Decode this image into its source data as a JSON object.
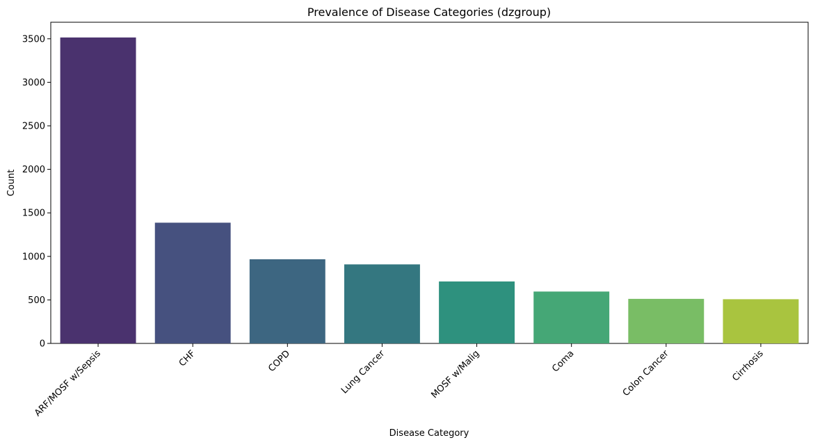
{
  "chart_data": {
    "type": "bar",
    "title": "Prevalence of Disease Categories (dzgroup)",
    "xlabel": "Disease Category",
    "ylabel": "Count",
    "categories": [
      "ARF/MOSF w/Sepsis",
      "CHF",
      "COPD",
      "Lung Cancer",
      "MOSF w/Malig",
      "Coma",
      "Colon Cancer",
      "Cirrhosis"
    ],
    "values": [
      3515,
      1387,
      967,
      908,
      712,
      596,
      512,
      508
    ],
    "colors": [
      "#4a326e",
      "#46517f",
      "#3d6681",
      "#347780",
      "#2e917e",
      "#45a776",
      "#79bd65",
      "#a9c43f"
    ],
    "ylim": [
      0,
      3690
    ],
    "yticks": [
      0,
      500,
      1000,
      1500,
      2000,
      2500,
      3000,
      3500
    ],
    "grid": false,
    "legend": "none"
  }
}
